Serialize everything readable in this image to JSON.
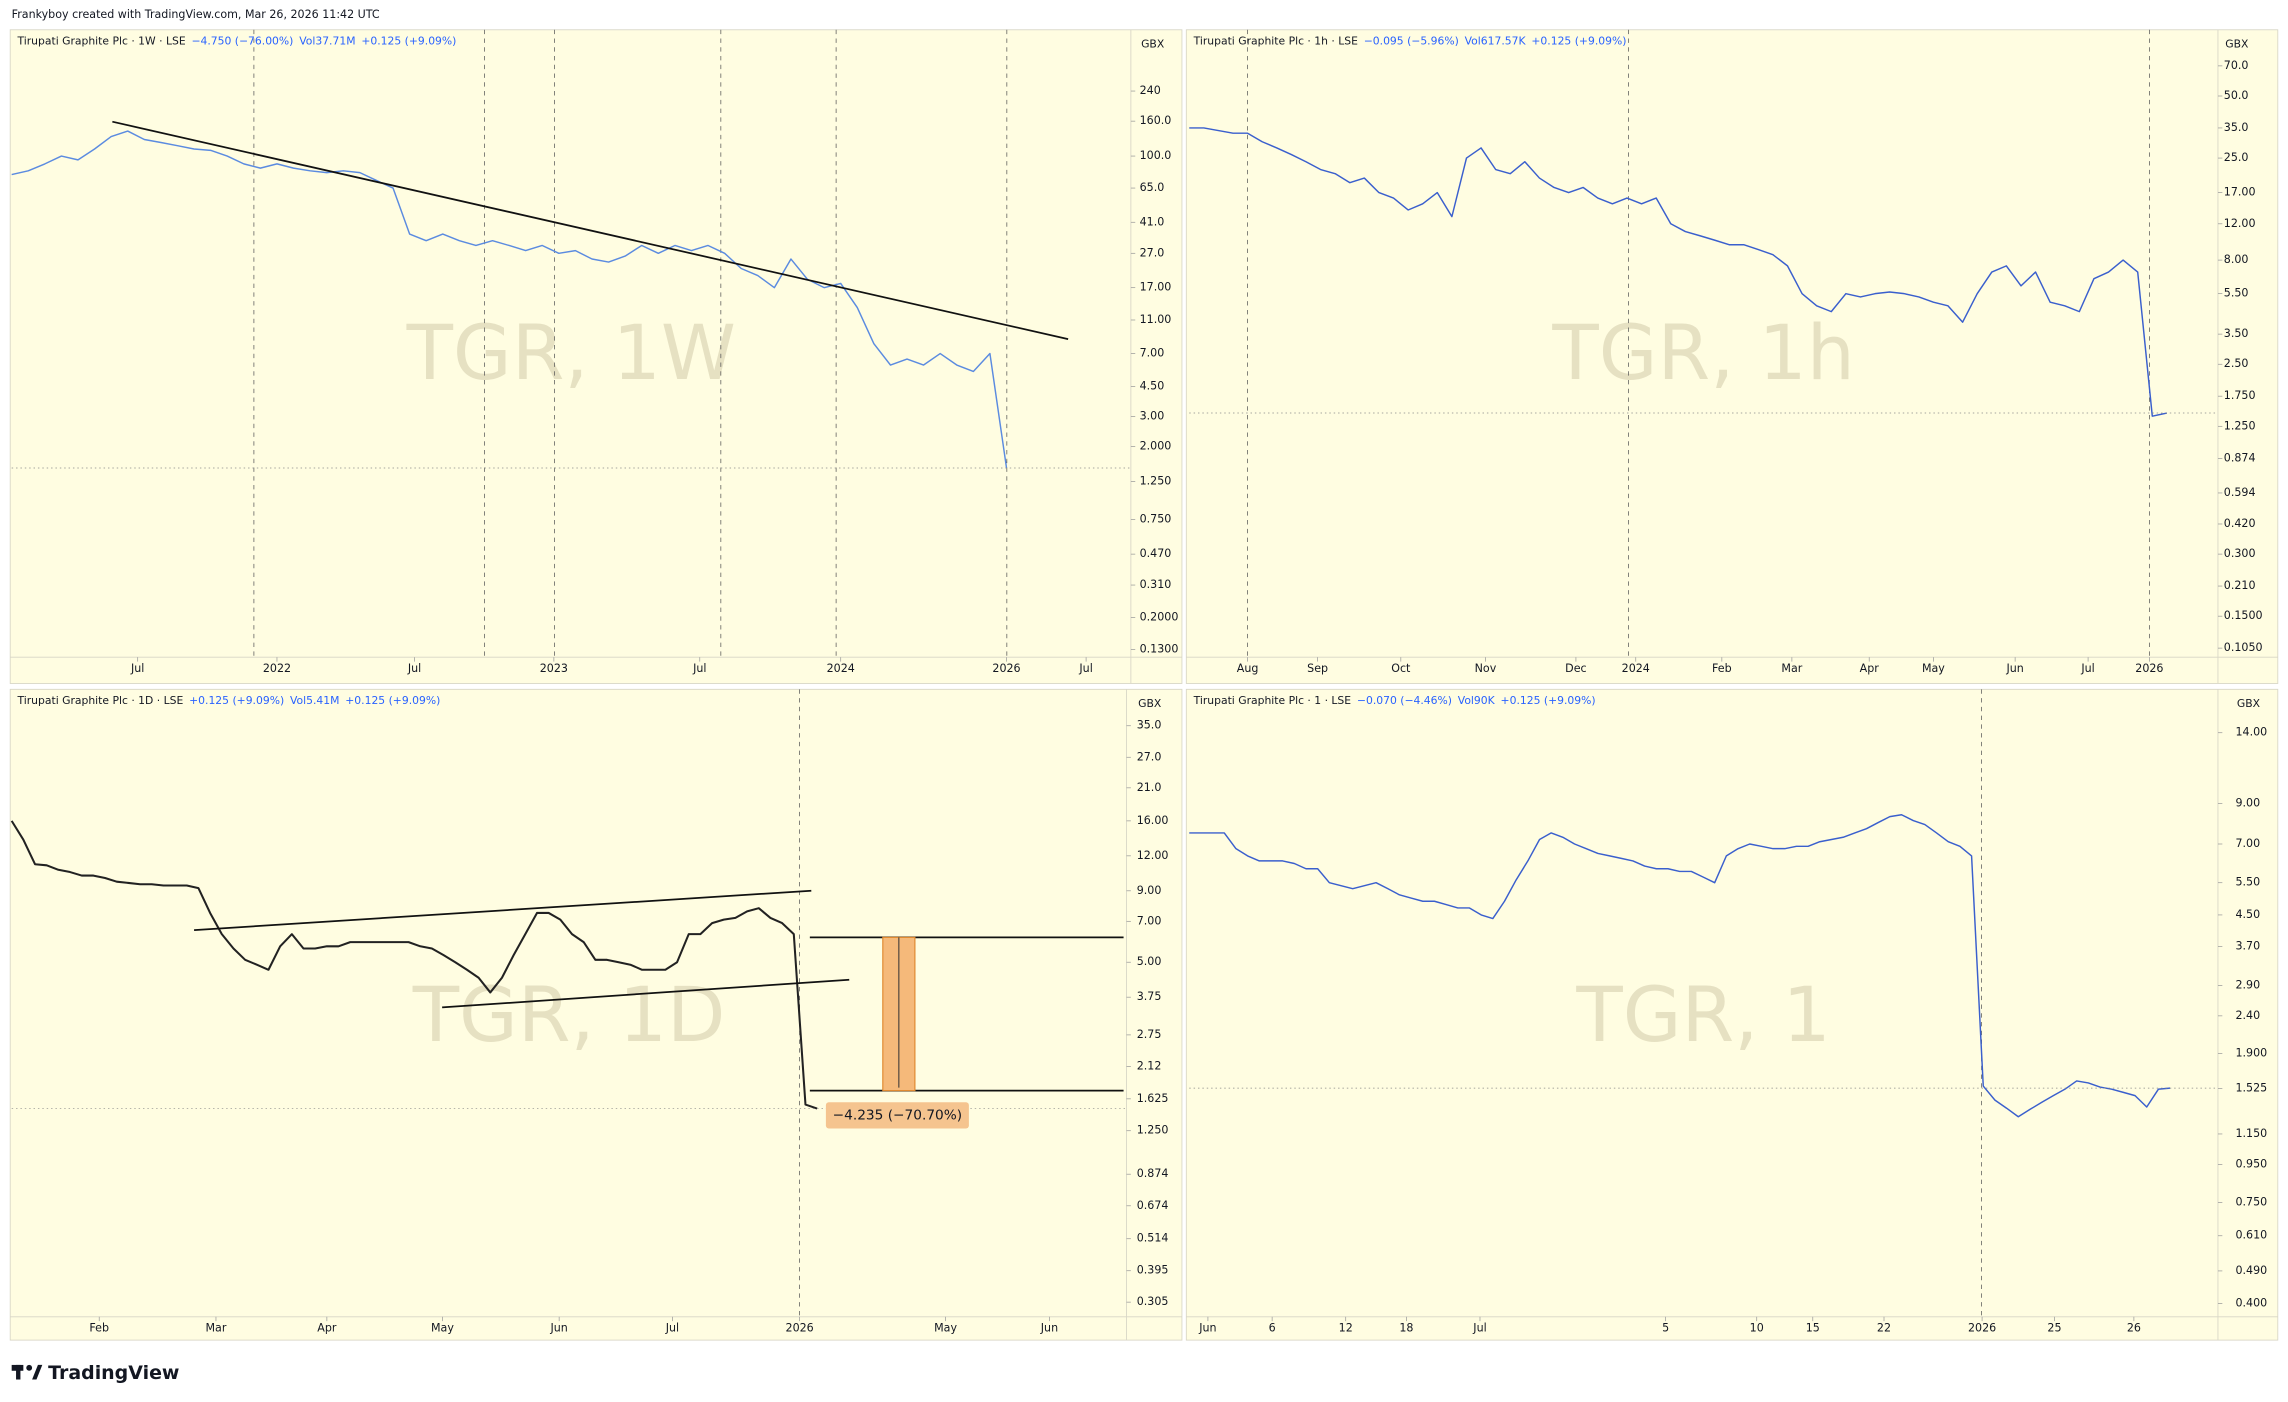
{
  "header": "Frankyboy created with TradingView.com, Mar 26, 2026 11:42 UTC",
  "footer_logo": "TradingView",
  "chart_data": [
    {
      "type": "line",
      "title": "Tirupati Graphite Plc · 1W · LSE",
      "change": "−4.750 (−76.00%)",
      "volume": "Vol37.71M",
      "volume_change": "+0.125 (+9.09%)",
      "watermark": "TGR, 1W",
      "currency": "GBX",
      "log_scale": true,
      "grid": false,
      "color": "#5b8be0",
      "values": [
        78,
        82,
        90,
        100,
        95,
        110,
        130,
        140,
        125,
        120,
        115,
        110,
        108,
        100,
        90,
        85,
        90,
        85,
        82,
        80,
        82,
        80,
        72,
        65,
        35,
        32,
        35,
        32,
        30,
        32,
        30,
        28,
        30,
        27,
        28,
        25,
        24,
        26,
        30,
        27,
        30,
        28,
        30,
        27,
        22,
        20,
        17,
        25,
        19,
        17,
        18,
        13,
        8,
        6,
        6.5,
        6,
        7,
        6,
        5.5,
        7,
        1.5
      ],
      "xlim": [
        0,
        67.5
      ],
      "xticks": [
        {
          "value": 7.6,
          "label": "Jul"
        },
        {
          "value": 16,
          "label": "2022"
        },
        {
          "value": 24.3,
          "label": "Jul"
        },
        {
          "value": 32.7,
          "label": "2023"
        },
        {
          "value": 41.5,
          "label": "Jul"
        },
        {
          "value": 50,
          "label": "2024"
        },
        {
          "value": 60,
          "label": "2026"
        },
        {
          "value": 64.8,
          "label": "Jul"
        }
      ],
      "ylim": [
        0.122,
        450
      ],
      "yticks": [
        240,
        {
          "value": 160,
          "label": "160.0"
        },
        {
          "value": 100,
          "label": "100.0"
        },
        {
          "value": 65,
          "label": "65.0"
        },
        {
          "value": 41,
          "label": "41.0"
        },
        {
          "value": 27,
          "label": "27.0"
        },
        {
          "value": 17,
          "label": "17.00"
        },
        {
          "value": 11,
          "label": "11.00"
        },
        {
          "value": 7,
          "label": "7.00"
        },
        {
          "value": 4.5,
          "label": "4.50"
        },
        {
          "value": 3,
          "label": "3.00"
        },
        {
          "value": 2,
          "label": "2.000"
        },
        {
          "value": 1.25,
          "label": "1.250"
        },
        {
          "value": 0.75,
          "label": "0.750"
        },
        {
          "value": 0.47,
          "label": "0.470"
        },
        {
          "value": 0.31,
          "label": "0.310"
        },
        {
          "value": 0.2,
          "label": "0.2000"
        },
        {
          "value": 0.13,
          "label": "0.1300"
        }
      ]
    },
    {
      "type": "line",
      "title": "Tirupati Graphite Plc · 1h · LSE",
      "change": "−0.095 (−5.96%)",
      "volume": "Vol617.57K",
      "volume_change": "+0.125 (+9.09%)",
      "watermark": "TGR, 1h",
      "currency": "GBX",
      "log_scale": true,
      "grid": false,
      "color": "#3a5fcd",
      "values": [
        35,
        35,
        34,
        33,
        33,
        30,
        28,
        26,
        24,
        22,
        21,
        19,
        20,
        17,
        16,
        14,
        15,
        17,
        13,
        25,
        28,
        22,
        21,
        24,
        20,
        18,
        17,
        18,
        16,
        15,
        16,
        15,
        16,
        12,
        11,
        10.5,
        10,
        9.5,
        9.5,
        9,
        8.5,
        7.5,
        5.5,
        4.8,
        4.5,
        5.5,
        5.3,
        5.5,
        5.6,
        5.5,
        5.3,
        5,
        4.8,
        4,
        5.5,
        7,
        7.5,
        6,
        7,
        5,
        4.8,
        4.5,
        6.5,
        7,
        8,
        7,
        1.4,
        1.45
      ],
      "xlim": [
        0,
        70.5
      ],
      "xticks": [
        {
          "value": 4,
          "label": "Aug"
        },
        {
          "value": 8.8,
          "label": "Sep"
        },
        {
          "value": 14.5,
          "label": "Oct"
        },
        {
          "value": 20.3,
          "label": "Nov"
        },
        {
          "value": 26.5,
          "label": "Dec"
        },
        {
          "value": 30.6,
          "label": "2024"
        },
        {
          "value": 36.5,
          "label": "Feb"
        },
        {
          "value": 41.3,
          "label": "Mar"
        },
        {
          "value": 46.6,
          "label": "Apr"
        },
        {
          "value": 51,
          "label": "May"
        },
        {
          "value": 56.6,
          "label": "Jun"
        },
        {
          "value": 61.6,
          "label": "Jul"
        },
        {
          "value": 65.8,
          "label": "2026"
        }
      ],
      "ylim": [
        0.098,
        89
      ],
      "yticks": [
        {
          "value": 70,
          "label": "70.0"
        },
        {
          "value": 50,
          "label": "50.0"
        },
        {
          "value": 35,
          "label": "35.0"
        },
        {
          "value": 25,
          "label": "25.0"
        },
        {
          "value": 17,
          "label": "17.00"
        },
        {
          "value": 12,
          "label": "12.00"
        },
        {
          "value": 8,
          "label": "8.00"
        },
        {
          "value": 5.5,
          "label": "5.50"
        },
        {
          "value": 3.5,
          "label": "3.50"
        },
        {
          "value": 2.5,
          "label": "2.50"
        },
        {
          "value": 1.75,
          "label": "1.750"
        },
        {
          "value": 1.25,
          "label": "1.250"
        },
        0.874,
        0.594,
        {
          "value": 0.42,
          "label": "0.420"
        },
        {
          "value": 0.3,
          "label": "0.300"
        },
        {
          "value": 0.21,
          "label": "0.210"
        },
        {
          "value": 0.15,
          "label": "0.1500"
        },
        {
          "value": 0.105,
          "label": "0.1050"
        }
      ]
    },
    {
      "type": "line",
      "title": "Tirupati Graphite Plc · 1D · LSE",
      "change": "+0.125 (+9.09%)",
      "volume": "Vol5.41M",
      "volume_change": "+0.125 (+9.09%)",
      "watermark": "TGR, 1D",
      "currency": "GBX",
      "log_scale": true,
      "grid": false,
      "color": "#222222",
      "annotation": "−4.235 (−70.70%)",
      "values": [
        16.0,
        13.7,
        11.2,
        11.1,
        10.7,
        10.5,
        10.2,
        10.2,
        10.0,
        9.7,
        9.6,
        9.5,
        9.5,
        9.4,
        9.4,
        9.4,
        9.2,
        7.5,
        6.3,
        5.6,
        5.1,
        4.9,
        4.7,
        5.7,
        6.3,
        5.6,
        5.6,
        5.7,
        5.7,
        5.9,
        5.9,
        5.9,
        5.9,
        5.9,
        5.9,
        5.7,
        5.6,
        5.3,
        5.0,
        4.7,
        4.4,
        3.9,
        4.4,
        5.3,
        6.3,
        7.5,
        7.5,
        7.1,
        6.3,
        5.9,
        5.1,
        5.1,
        5.0,
        4.9,
        4.7,
        4.7,
        4.7,
        5.0,
        6.3,
        6.3,
        6.9,
        7.1,
        7.2,
        7.6,
        7.8,
        7.2,
        6.9,
        6.3,
        1.55,
        1.5
      ],
      "xlim": [
        0,
        95.5
      ],
      "xticks": [
        {
          "value": 7.5,
          "label": "Feb"
        },
        {
          "value": 17.5,
          "label": "Mar"
        },
        {
          "value": 27,
          "label": "Apr"
        },
        {
          "value": 36.9,
          "label": "May"
        },
        {
          "value": 46.9,
          "label": "Jun"
        },
        {
          "value": 56.6,
          "label": "Jul"
        },
        {
          "value": 67.5,
          "label": "2026"
        },
        {
          "value": 80,
          "label": "May"
        },
        {
          "value": 88.9,
          "label": "Jun"
        }
      ],
      "ylim": [
        0.277,
        40.4
      ],
      "yticks": [
        {
          "value": 35,
          "label": "35.0"
        },
        {
          "value": 27,
          "label": "27.0"
        },
        {
          "value": 21,
          "label": "21.0"
        },
        {
          "value": 16,
          "label": "16.00"
        },
        {
          "value": 12,
          "label": "12.00"
        },
        {
          "value": 9,
          "label": "9.00"
        },
        {
          "value": 7,
          "label": "7.00"
        },
        {
          "value": 5,
          "label": "5.00"
        },
        3.75,
        2.75,
        2.12,
        1.625,
        {
          "value": 1.25,
          "label": "1.250"
        },
        0.874,
        0.674,
        0.514,
        0.395,
        0.305
      ]
    },
    {
      "type": "line",
      "title": "Tirupati Graphite Plc · 1 · LSE",
      "change": "−0.070 (−4.46%)",
      "volume": "Vol90K",
      "volume_change": "+0.125 (+9.09%)",
      "watermark": "TGR, 1",
      "currency": "GBX",
      "log_scale": true,
      "grid": false,
      "color": "#3a5fcd",
      "values": [
        7.5,
        7.5,
        7.5,
        7.5,
        6.8,
        6.5,
        6.3,
        6.3,
        6.3,
        6.2,
        6.0,
        6.0,
        5.5,
        5.4,
        5.3,
        5.4,
        5.5,
        5.3,
        5.1,
        5.0,
        4.9,
        4.9,
        4.8,
        4.7,
        4.7,
        4.5,
        4.4,
        4.9,
        5.6,
        6.3,
        7.2,
        7.5,
        7.3,
        7.0,
        6.8,
        6.6,
        6.5,
        6.4,
        6.3,
        6.1,
        6.0,
        6.0,
        5.9,
        5.9,
        5.7,
        5.5,
        6.5,
        6.8,
        7.0,
        6.9,
        6.8,
        6.8,
        6.9,
        6.9,
        7.1,
        7.2,
        7.3,
        7.5,
        7.7,
        8.0,
        8.3,
        8.4,
        8.1,
        7.9,
        7.5,
        7.1,
        6.9,
        6.5,
        1.55,
        1.42,
        1.35,
        1.28,
        1.34,
        1.4,
        1.46,
        1.52,
        1.6,
        1.58,
        1.54,
        1.52,
        1.49,
        1.46,
        1.36,
        1.52,
        1.53
      ],
      "xlim": [
        0,
        88.1
      ],
      "xticks": [
        {
          "value": 1.6,
          "label": "Jun"
        },
        {
          "value": 7.1,
          "label": "6"
        },
        {
          "value": 13.4,
          "label": "12"
        },
        {
          "value": 18.6,
          "label": "18"
        },
        {
          "value": 24.9,
          "label": "Jul"
        },
        {
          "value": 40.8,
          "label": "5"
        },
        {
          "value": 48.6,
          "label": "10"
        },
        {
          "value": 53.4,
          "label": "15"
        },
        {
          "value": 59.5,
          "label": "22"
        },
        {
          "value": 67.9,
          "label": "2026"
        },
        {
          "value": 74.1,
          "label": "25"
        },
        {
          "value": 80.9,
          "label": "26"
        }
      ],
      "ylim": [
        0.375,
        16.3
      ],
      "yticks": [
        {
          "value": 14,
          "label": "14.00"
        },
        {
          "value": 9,
          "label": "9.00"
        },
        {
          "value": 7,
          "label": "7.00"
        },
        {
          "value": 5.5,
          "label": "5.50"
        },
        {
          "value": 4.5,
          "label": "4.50"
        },
        {
          "value": 3.7,
          "label": "3.70"
        },
        {
          "value": 2.9,
          "label": "2.90"
        },
        {
          "value": 2.4,
          "label": "2.40"
        },
        {
          "value": 1.9,
          "label": "1.900"
        },
        1.525,
        {
          "value": 1.15,
          "label": "1.150"
        },
        {
          "value": 0.95,
          "label": "0.950"
        },
        {
          "value": 0.75,
          "label": "0.750"
        },
        {
          "value": 0.61,
          "label": "0.610"
        },
        {
          "value": 0.49,
          "label": "0.490"
        },
        {
          "value": 0.4,
          "label": "0.400"
        }
      ]
    }
  ]
}
